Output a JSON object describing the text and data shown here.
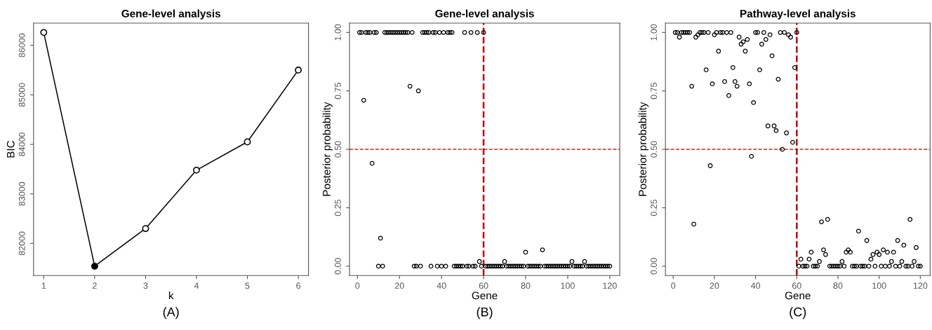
{
  "chart_data": [
    {
      "type": "line",
      "title": "Gene-level analysis",
      "xlabel": "k",
      "ylabel": "BIC",
      "annotations": [
        "(A)"
      ],
      "x": [
        1,
        2,
        3,
        4,
        5,
        6
      ],
      "series": [
        {
          "color": "#000000",
          "colors": [
            "#ffffff",
            "#000000",
            "#ffffff",
            "#ffffff",
            "#ffffff",
            "#ffffff"
          ],
          "values": [
            86260,
            81540,
            82300,
            83480,
            84050,
            85500
          ]
        }
      ],
      "xlim": [
        0.8,
        6.2
      ],
      "ylim": [
        81351,
        86449
      ],
      "xticks": [
        1,
        2,
        3,
        4,
        5,
        6
      ],
      "yticks": [
        82000,
        83000,
        84000,
        85000,
        86000
      ],
      "marker": "circle",
      "line_style": "solid",
      "grid": false,
      "legend": false
    },
    {
      "type": "scatter",
      "title": "Gene-level analysis",
      "xlabel": "Gene",
      "ylabel": "Posterior probability",
      "annotations": [
        "(B)"
      ],
      "x": [
        1,
        2,
        3,
        4,
        5,
        6,
        7,
        8,
        9,
        10,
        11,
        12,
        13,
        14,
        15,
        16,
        17,
        18,
        19,
        20,
        21,
        22,
        23,
        24,
        25,
        26,
        27,
        28,
        29,
        30,
        31,
        32,
        33,
        34,
        35,
        36,
        37,
        38,
        39,
        40,
        41,
        42,
        43,
        44,
        45,
        46,
        47,
        48,
        49,
        50,
        51,
        52,
        53,
        54,
        55,
        56,
        57,
        58,
        59,
        60,
        61,
        62,
        63,
        64,
        65,
        66,
        67,
        68,
        69,
        70,
        71,
        72,
        73,
        74,
        75,
        76,
        77,
        78,
        79,
        80,
        81,
        82,
        83,
        84,
        85,
        86,
        87,
        88,
        89,
        90,
        91,
        92,
        93,
        94,
        95,
        96,
        97,
        98,
        99,
        100,
        101,
        102,
        103,
        104,
        105,
        106,
        107,
        108,
        109,
        110,
        111,
        112,
        113,
        114,
        115,
        116,
        117,
        118,
        119,
        120
      ],
      "series": [
        {
          "color": "#000000",
          "values": [
            1,
            1,
            0.71,
            1,
            1,
            1,
            0.44,
            1,
            1,
            0,
            0.12,
            0,
            1,
            1,
            1,
            1,
            1,
            1,
            1,
            1,
            1,
            1,
            1,
            1,
            0.77,
            1,
            0,
            0,
            0.75,
            0,
            1,
            1,
            1,
            1,
            0,
            1,
            1,
            0,
            1,
            0,
            1,
            0,
            1,
            1,
            1,
            0,
            0,
            0,
            0,
            0,
            1,
            0,
            0,
            1,
            0,
            0,
            1,
            0.02,
            0,
            1,
            0,
            0,
            0,
            0,
            0,
            0,
            0,
            0,
            0,
            0.02,
            0,
            0,
            0,
            0,
            0,
            0,
            0,
            0,
            0,
            0.06,
            0,
            0,
            0,
            0,
            0,
            0,
            0,
            0.07,
            0,
            0,
            0,
            0,
            0,
            0,
            0,
            0,
            0,
            0,
            0,
            0,
            0,
            0.02,
            0,
            0,
            0,
            0,
            0,
            0.02,
            0,
            0,
            0,
            0,
            0,
            0,
            0,
            0,
            0,
            0,
            0,
            0
          ]
        }
      ],
      "xlim": [
        -3.76,
        124.76
      ],
      "ylim": [
        -0.04,
        1.04
      ],
      "xticks": [
        0,
        20,
        40,
        60,
        80,
        100,
        120
      ],
      "yticks": [
        {
          "value": 0,
          "label": "0.00"
        },
        {
          "value": 0.25,
          "label": "0.25"
        },
        {
          "value": 0.5,
          "label": "0.50"
        },
        {
          "value": 0.75,
          "label": "0.75"
        },
        {
          "value": 1,
          "label": "1.00"
        }
      ],
      "ref_lines": [
        {
          "axis": "y",
          "value": 0.5,
          "color": "#c00000",
          "line_style": "dashed"
        },
        {
          "axis": "x",
          "value": 60,
          "color": "#c00000",
          "line_style": "dashed"
        }
      ],
      "marker": "circle",
      "grid": false,
      "legend": false
    },
    {
      "type": "scatter",
      "title": "Pathway-level analysis",
      "xlabel": "Gene",
      "ylabel": "Posterior probability",
      "annotations": [
        "(C)"
      ],
      "x": [
        1,
        2,
        3,
        4,
        5,
        6,
        7,
        8,
        9,
        10,
        11,
        12,
        13,
        14,
        15,
        16,
        17,
        18,
        19,
        20,
        21,
        22,
        23,
        24,
        25,
        26,
        27,
        28,
        29,
        30,
        31,
        32,
        33,
        34,
        35,
        36,
        37,
        38,
        39,
        40,
        41,
        42,
        43,
        44,
        45,
        46,
        47,
        48,
        49,
        50,
        51,
        52,
        53,
        54,
        55,
        56,
        57,
        58,
        59,
        60,
        61,
        62,
        63,
        64,
        65,
        66,
        67,
        68,
        69,
        70,
        71,
        72,
        73,
        74,
        75,
        76,
        77,
        78,
        79,
        80,
        81,
        82,
        83,
        84,
        85,
        86,
        87,
        88,
        89,
        90,
        91,
        92,
        93,
        94,
        95,
        96,
        97,
        98,
        99,
        100,
        101,
        102,
        103,
        104,
        105,
        106,
        107,
        108,
        109,
        110,
        111,
        112,
        113,
        114,
        115,
        116,
        117,
        118,
        119,
        120
      ],
      "series": [
        {
          "color": "#000000",
          "values": [
            1,
            1,
            0.98,
            1,
            1,
            1,
            1,
            1,
            0.77,
            0.18,
            0.98,
            0.99,
            1,
            1,
            1,
            0.84,
            1,
            0.43,
            0.78,
            0.99,
            1,
            0.92,
            1,
            1,
            0.79,
            1,
            0.73,
            1,
            0.85,
            0.79,
            0.77,
            0.98,
            0.95,
            0.96,
            0.92,
            0.97,
            0.78,
            0.47,
            0.7,
            1,
            1,
            0.84,
            0.95,
            1,
            0.97,
            0.6,
            0.99,
            0.9,
            0.6,
            0.58,
            0.8,
            1,
            0.5,
            1,
            0.57,
            0.99,
            0.98,
            0.53,
            0.85,
            1,
            0,
            0.03,
            0,
            0,
            0,
            0.03,
            0.06,
            0,
            0,
            0,
            0.02,
            0.19,
            0.07,
            0.05,
            0.2,
            0,
            0,
            0,
            0,
            0,
            0,
            0.02,
            0,
            0.06,
            0.07,
            0.06,
            0,
            0,
            0,
            0.15,
            0,
            0,
            0,
            0.11,
            0,
            0.03,
            0.05,
            0,
            0.06,
            0.05,
            0,
            0.07,
            0,
            0.06,
            0,
            0.02,
            0.06,
            0,
            0.11,
            0,
            0.02,
            0.09,
            0,
            0,
            0.2,
            0,
            0.02,
            0.08,
            0,
            0
          ]
        }
      ],
      "xlim": [
        -3.76,
        124.76
      ],
      "ylim": [
        -0.04,
        1.04
      ],
      "xticks": [
        0,
        20,
        40,
        60,
        80,
        100,
        120
      ],
      "yticks": [
        {
          "value": 0,
          "label": "0.00"
        },
        {
          "value": 0.25,
          "label": "0.25"
        },
        {
          "value": 0.5,
          "label": "0.50"
        },
        {
          "value": 0.75,
          "label": "0.75"
        },
        {
          "value": 1,
          "label": "1.00"
        }
      ],
      "ref_lines": [
        {
          "axis": "y",
          "value": 0.5,
          "color": "#c00000",
          "line_style": "dashed"
        },
        {
          "axis": "x",
          "value": 60,
          "color": "#c00000",
          "line_style": "dashed"
        }
      ],
      "marker": "circle",
      "grid": false,
      "legend": false
    }
  ]
}
